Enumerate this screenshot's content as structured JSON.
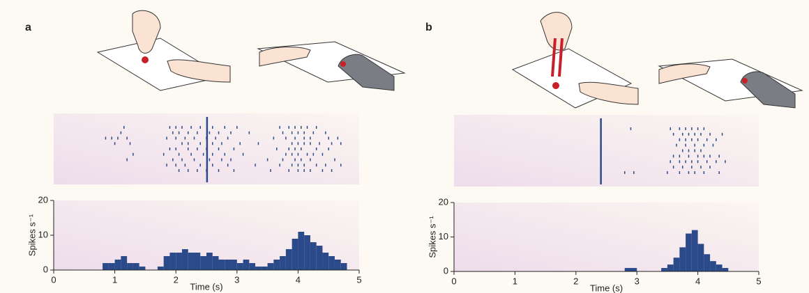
{
  "chart_data": [
    {
      "type": "histogram",
      "label": "a",
      "xlabel": "Time (s)",
      "ylabel": "Spikes s⁻¹",
      "color": "#2b4a8a",
      "xlim": [
        0,
        5
      ],
      "ylim": [
        0,
        20
      ],
      "xticks": [
        0,
        1,
        2,
        3,
        4,
        5
      ],
      "yticks": [
        0,
        10,
        20
      ],
      "bins": [
        0,
        0.1,
        0.2,
        0.3,
        0.4,
        0.5,
        0.6,
        0.7,
        0.8,
        0.9,
        1,
        1.1,
        1.2,
        1.3,
        1.4,
        1.5,
        1.6,
        1.7,
        1.8,
        1.9,
        2,
        2.1,
        2.2,
        2.3,
        2.4,
        2.5,
        2.6,
        2.7,
        2.8,
        2.9,
        3,
        3.1,
        3.2,
        3.3,
        3.4,
        3.5,
        3.6,
        3.7,
        3.8,
        3.9,
        4,
        4.1,
        4.2,
        4.3,
        4.4,
        4.5,
        4.6,
        4.7,
        4.8,
        4.9,
        5
      ],
      "counts": [
        0,
        0,
        0,
        0,
        0,
        0,
        0,
        0,
        2,
        2,
        3,
        4,
        2,
        2,
        1,
        0,
        0,
        1,
        4,
        5,
        5,
        6,
        5,
        5,
        4,
        5,
        4,
        3,
        3,
        3,
        2,
        3,
        2,
        1,
        1,
        2,
        3,
        4,
        6,
        9,
        11,
        10,
        8,
        7,
        5,
        4,
        3,
        2,
        0,
        0
      ],
      "raster": {
        "event": 2.51,
        "trials": [
          [
            1.15,
            1.9,
            2.0,
            2.1,
            2.25,
            2.4,
            2.6,
            2.8,
            3.0,
            3.7,
            3.85,
            3.95,
            4.05,
            4.15,
            4.3
          ],
          [
            1.1,
            1.95,
            2.05,
            2.2,
            2.35,
            2.55,
            2.7,
            2.9,
            3.2,
            3.75,
            3.9,
            4.0,
            4.1,
            4.25,
            4.45
          ],
          [
            0.85,
            0.95,
            1.05,
            1.2,
            1.85,
            2.0,
            2.15,
            2.3,
            2.5,
            2.65,
            2.85,
            3.6,
            3.8,
            3.95,
            4.1,
            4.2,
            4.5,
            4.65
          ],
          [
            1.0,
            1.25,
            2.1,
            2.2,
            2.4,
            2.6,
            2.75,
            3.05,
            3.35,
            3.9,
            4.0,
            4.1,
            4.2,
            4.35,
            4.55,
            4.7
          ],
          [
            1.9,
            2.0,
            2.2,
            2.35,
            2.5,
            2.7,
            2.95,
            3.65,
            3.85,
            3.95,
            4.05,
            4.3,
            4.5
          ],
          [
            1.3,
            1.8,
            2.05,
            2.25,
            2.45,
            2.6,
            2.8,
            3.1,
            3.8,
            3.9,
            4.0,
            4.15,
            4.25,
            4.4
          ],
          [
            1.2,
            1.95,
            2.1,
            2.3,
            2.55,
            2.75,
            2.9,
            3.5,
            3.75,
            3.95,
            4.05,
            4.2,
            4.6
          ],
          [
            1.85,
            2.0,
            2.15,
            2.4,
            2.6,
            2.85,
            3.3,
            3.7,
            3.9,
            4.0,
            4.1,
            4.3,
            4.45,
            4.7
          ],
          [
            2.05,
            2.2,
            2.35,
            2.5,
            2.7,
            2.95,
            3.55,
            3.85,
            4.0,
            4.1,
            4.2,
            4.4,
            4.55
          ]
        ]
      }
    },
    {
      "type": "histogram",
      "label": "b",
      "xlabel": "Time (s)",
      "ylabel": "Spikes s⁻¹",
      "color": "#2b4a8a",
      "xlim": [
        0,
        5
      ],
      "ylim": [
        0,
        20
      ],
      "xticks": [
        0,
        1,
        2,
        3,
        4,
        5
      ],
      "yticks": [
        0,
        10,
        20
      ],
      "bins": [
        0,
        0.1,
        0.2,
        0.3,
        0.4,
        0.5,
        0.6,
        0.7,
        0.8,
        0.9,
        1,
        1.1,
        1.2,
        1.3,
        1.4,
        1.5,
        1.6,
        1.7,
        1.8,
        1.9,
        2,
        2.1,
        2.2,
        2.3,
        2.4,
        2.5,
        2.6,
        2.7,
        2.8,
        2.9,
        3,
        3.1,
        3.2,
        3.3,
        3.4,
        3.5,
        3.6,
        3.7,
        3.8,
        3.9,
        4,
        4.1,
        4.2,
        4.3,
        4.4,
        4.5,
        4.6,
        4.7,
        4.8,
        4.9,
        5
      ],
      "counts": [
        0,
        0,
        0,
        0,
        0,
        0,
        0,
        0,
        0,
        0,
        0,
        0,
        0,
        0,
        0,
        0,
        0,
        0,
        0,
        0,
        0,
        0,
        0,
        0,
        0,
        0,
        0,
        0,
        1,
        1,
        0,
        0,
        0,
        0,
        1,
        2,
        4,
        7,
        11,
        12,
        8,
        5,
        3,
        2,
        1,
        0,
        0,
        0,
        0,
        0
      ],
      "raster": {
        "event": 2.41,
        "trials": [
          [
            2.9,
            3.55,
            3.7,
            3.8,
            3.9,
            4.0,
            4.1
          ],
          [
            3.6,
            3.75,
            3.85,
            3.95,
            4.05,
            4.2,
            4.4
          ],
          [
            3.7,
            3.8,
            3.9,
            4.0,
            4.15,
            4.3
          ],
          [
            3.65,
            3.8,
            3.95,
            4.1,
            4.25
          ],
          [
            3.75,
            3.85,
            3.95,
            4.05
          ],
          [
            3.6,
            3.7,
            3.85,
            4.0,
            4.1,
            4.2,
            4.35
          ],
          [
            3.55,
            3.7,
            3.8,
            3.9,
            4.0,
            4.15,
            4.3,
            4.45
          ],
          [
            3.6,
            3.75,
            3.9,
            4.05,
            4.2
          ],
          [
            2.8,
            2.95,
            3.5,
            3.7,
            3.85,
            3.95,
            4.1,
            4.35
          ]
        ]
      }
    }
  ]
}
